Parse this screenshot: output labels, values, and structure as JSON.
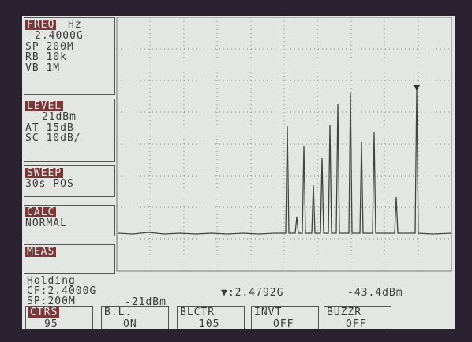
{
  "freq_panel": {
    "label": "FREQ",
    "unit": "Hz",
    "lines": [
      "2.4000G",
      "SP 200M",
      "RB 10k",
      "VB 1M"
    ]
  },
  "level_panel": {
    "label": "LEVEL",
    "lines": [
      "-21dBm",
      "AT 15dB",
      "SC 10dB/"
    ]
  },
  "sweep_panel": {
    "label": "SWEEP",
    "lines": [
      "30s POS"
    ]
  },
  "calc_panel": {
    "label": "CALC",
    "lines": [
      "NORMAL"
    ]
  },
  "meas_panel": {
    "label": "MEAS"
  },
  "status": [
    "Holding",
    "CF:2.4000G",
    "SP:200M",
    "-21dBm"
  ],
  "marker": {
    "freq": "▼:2.4792G",
    "level": "-43.4dBm"
  },
  "softkeys": [
    {
      "label": "CTRS",
      "value": "95"
    },
    {
      "label": "B.L.",
      "value": "ON"
    },
    {
      "label": "BLCTR",
      "value": "105"
    },
    {
      "label": "INVT",
      "value": "OFF"
    },
    {
      "label": "BUZZR",
      "value": "OFF"
    }
  ]
}
